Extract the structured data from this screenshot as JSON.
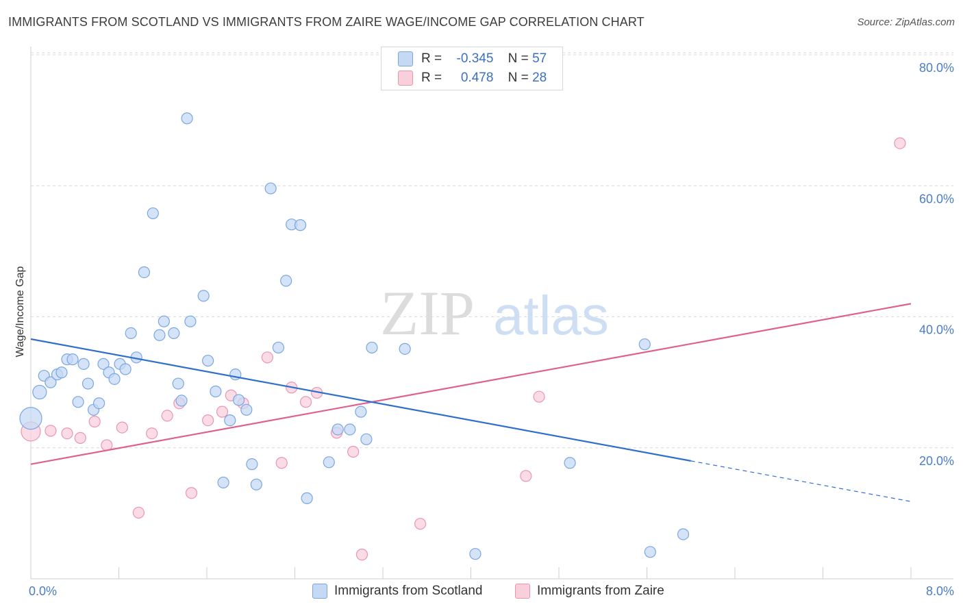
{
  "title": "IMMIGRANTS FROM SCOTLAND VS IMMIGRANTS FROM ZAIRE WAGE/INCOME GAP CORRELATION CHART",
  "source": "Source: ZipAtlas.com",
  "watermark": {
    "zip": "ZIP",
    "atlas": "atlas"
  },
  "legend_top": {
    "r_label": "R =",
    "n_label": "N =",
    "rows": [
      {
        "r": "-0.345",
        "n": "57",
        "color": "#a9c6f0"
      },
      {
        "r": "0.478",
        "n": "28",
        "color": "#f6b9cc"
      }
    ]
  },
  "colors": {
    "scotland_fill": "#c5d9f5",
    "scotland_stroke": "#7aa6e0",
    "scotland_line": "#2f6fcc",
    "zaire_fill": "#f9cfdc",
    "zaire_stroke": "#e896b1",
    "zaire_line": "#e0608c",
    "grid": "#d9d9d9",
    "tick_text": "#4a7cc9"
  },
  "chart_data": {
    "type": "scatter",
    "title": "IMMIGRANTS FROM SCOTLAND VS IMMIGRANTS FROM ZAIRE WAGE/INCOME GAP CORRELATION CHART",
    "xlabel": "",
    "ylabel": "Wage/Income Gap",
    "xlim": [
      0,
      8
    ],
    "ylim": [
      0,
      80
    ],
    "x_tick_labels": [
      "0.0%",
      "8.0%"
    ],
    "y_ticks": [
      20,
      40,
      60,
      80
    ],
    "y_tick_labels": [
      "20.0%",
      "40.0%",
      "60.0%",
      "80.0%"
    ],
    "grid": true,
    "legend": "bottom",
    "series": [
      {
        "name": "Immigrants from Scotland",
        "r": -0.345,
        "n": 57,
        "trend": {
          "x": [
            0.0,
            6.0
          ],
          "y": [
            36.6,
            18.0
          ],
          "dashed_to": [
            8.0,
            11.8
          ]
        },
        "points": [
          {
            "x": 0.0,
            "y": 24.5,
            "s": 16
          },
          {
            "x": 0.08,
            "y": 28.5,
            "s": 10
          },
          {
            "x": 0.12,
            "y": 31.0
          },
          {
            "x": 0.18,
            "y": 30.0
          },
          {
            "x": 0.24,
            "y": 31.2
          },
          {
            "x": 0.28,
            "y": 31.5
          },
          {
            "x": 0.33,
            "y": 33.5
          },
          {
            "x": 0.38,
            "y": 33.5
          },
          {
            "x": 0.43,
            "y": 27.0
          },
          {
            "x": 0.48,
            "y": 32.8
          },
          {
            "x": 0.52,
            "y": 29.8
          },
          {
            "x": 0.57,
            "y": 25.8
          },
          {
            "x": 0.62,
            "y": 26.8
          },
          {
            "x": 0.66,
            "y": 32.8
          },
          {
            "x": 0.71,
            "y": 31.5
          },
          {
            "x": 0.76,
            "y": 30.5
          },
          {
            "x": 0.81,
            "y": 32.8
          },
          {
            "x": 0.86,
            "y": 32.0
          },
          {
            "x": 0.91,
            "y": 37.5
          },
          {
            "x": 0.96,
            "y": 33.8
          },
          {
            "x": 1.03,
            "y": 46.8
          },
          {
            "x": 1.11,
            "y": 55.8
          },
          {
            "x": 1.17,
            "y": 37.2
          },
          {
            "x": 1.21,
            "y": 39.3
          },
          {
            "x": 1.3,
            "y": 37.5
          },
          {
            "x": 1.34,
            "y": 29.8
          },
          {
            "x": 1.37,
            "y": 27.2
          },
          {
            "x": 1.42,
            "y": 70.3
          },
          {
            "x": 1.45,
            "y": 39.3
          },
          {
            "x": 1.57,
            "y": 43.2
          },
          {
            "x": 1.61,
            "y": 33.3
          },
          {
            "x": 1.68,
            "y": 28.6
          },
          {
            "x": 1.81,
            "y": 24.2
          },
          {
            "x": 1.86,
            "y": 31.2
          },
          {
            "x": 1.89,
            "y": 27.3
          },
          {
            "x": 1.96,
            "y": 25.8
          },
          {
            "x": 2.01,
            "y": 17.5
          },
          {
            "x": 2.05,
            "y": 14.4
          },
          {
            "x": 1.75,
            "y": 14.7
          },
          {
            "x": 2.18,
            "y": 59.6
          },
          {
            "x": 2.25,
            "y": 35.3
          },
          {
            "x": 2.32,
            "y": 45.5
          },
          {
            "x": 2.37,
            "y": 54.1
          },
          {
            "x": 2.45,
            "y": 54.0
          },
          {
            "x": 2.51,
            "y": 12.3
          },
          {
            "x": 2.71,
            "y": 17.8
          },
          {
            "x": 2.79,
            "y": 22.8
          },
          {
            "x": 2.9,
            "y": 22.8
          },
          {
            "x": 3.0,
            "y": 25.5
          },
          {
            "x": 3.05,
            "y": 21.3
          },
          {
            "x": 3.1,
            "y": 35.3
          },
          {
            "x": 3.4,
            "y": 35.1
          },
          {
            "x": 4.04,
            "y": 3.8
          },
          {
            "x": 4.9,
            "y": 17.7
          },
          {
            "x": 5.58,
            "y": 35.8
          },
          {
            "x": 5.63,
            "y": 4.1
          },
          {
            "x": 5.93,
            "y": 6.8
          }
        ]
      },
      {
        "name": "Immigrants from Zaire",
        "r": 0.478,
        "n": 28,
        "trend": {
          "x": [
            0.0,
            8.0
          ],
          "y": [
            17.5,
            42.0
          ]
        },
        "points": [
          {
            "x": 0.0,
            "y": 22.5,
            "s": 14
          },
          {
            "x": 0.18,
            "y": 22.6
          },
          {
            "x": 0.33,
            "y": 22.2
          },
          {
            "x": 0.45,
            "y": 21.5
          },
          {
            "x": 0.58,
            "y": 24.0
          },
          {
            "x": 0.69,
            "y": 20.4
          },
          {
            "x": 0.83,
            "y": 23.1
          },
          {
            "x": 0.98,
            "y": 10.1
          },
          {
            "x": 1.1,
            "y": 22.2
          },
          {
            "x": 1.24,
            "y": 24.9
          },
          {
            "x": 1.35,
            "y": 26.8
          },
          {
            "x": 1.46,
            "y": 13.1
          },
          {
            "x": 1.61,
            "y": 24.2
          },
          {
            "x": 1.74,
            "y": 25.5
          },
          {
            "x": 1.82,
            "y": 28.0
          },
          {
            "x": 1.93,
            "y": 26.8
          },
          {
            "x": 2.15,
            "y": 33.8
          },
          {
            "x": 2.28,
            "y": 17.7
          },
          {
            "x": 2.37,
            "y": 29.2
          },
          {
            "x": 2.5,
            "y": 27.0
          },
          {
            "x": 2.6,
            "y": 28.4
          },
          {
            "x": 2.78,
            "y": 22.3
          },
          {
            "x": 2.93,
            "y": 19.4
          },
          {
            "x": 3.01,
            "y": 3.7
          },
          {
            "x": 3.54,
            "y": 8.4
          },
          {
            "x": 4.5,
            "y": 15.7
          },
          {
            "x": 4.62,
            "y": 27.8
          },
          {
            "x": 7.9,
            "y": 66.5
          }
        ]
      }
    ]
  }
}
